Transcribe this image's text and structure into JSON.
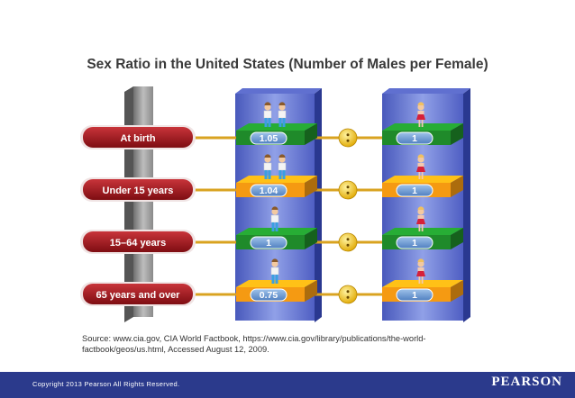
{
  "title": "Sex Ratio in the United States (Number of Males per Female)",
  "rows": [
    {
      "label": "At birth",
      "males": "1.05",
      "females": "1",
      "color": "#1f8a2a",
      "male_icons": 2,
      "female_icons": 1
    },
    {
      "label": "Under 15 years",
      "males": "1.04",
      "females": "1",
      "color": "#f59a12",
      "male_icons": 2,
      "female_icons": 1
    },
    {
      "label": "15–64 years",
      "males": "1",
      "females": "1",
      "color": "#1f8a2a",
      "male_icons": 1,
      "female_icons": 1
    },
    {
      "label": "65 years and over",
      "males": "0.75",
      "females": "1",
      "color": "#f59a12",
      "male_icons": 1,
      "female_icons": 1
    }
  ],
  "source": "Source: www.cia.gov, CIA World Factbook, https://www.cia.gov/library/publications/the-world-factbook/geos/us.html, Accessed August 12, 2009.",
  "footer": {
    "copyright": "Copyright 2013 Pearson All Rights Reserved.",
    "logo": "PEARSON"
  }
}
